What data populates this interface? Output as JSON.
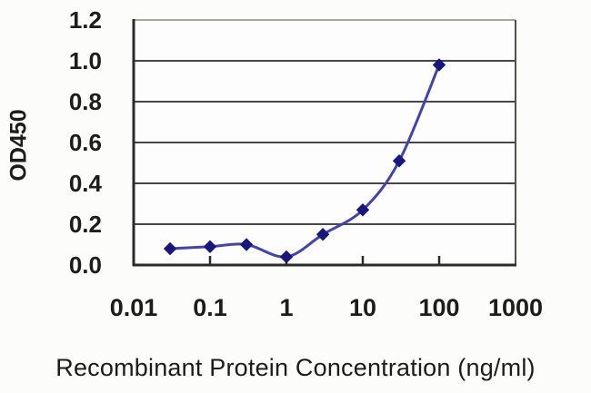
{
  "figure": {
    "background": "#fcfcfb",
    "plot_background": "#fdfdfd"
  },
  "chart_data": {
    "type": "line",
    "title": "",
    "xlabel": "Recombinant Protein Concentration (ng/ml)",
    "ylabel": "OD450",
    "x_scale": "log",
    "xlim": [
      0.01,
      1000
    ],
    "ylim": [
      0,
      1.2
    ],
    "x_ticks": [
      0.01,
      0.1,
      1,
      10,
      100,
      1000
    ],
    "x_tick_labels": [
      "0.01",
      "0.1",
      "1",
      "10",
      "100",
      "1000"
    ],
    "y_ticks": [
      0.0,
      0.2,
      0.4,
      0.6,
      0.8,
      1.0,
      1.2
    ],
    "y_tick_labels": [
      "0.0",
      "0.2",
      "0.4",
      "0.6",
      "0.8",
      "1.0",
      "1.2"
    ],
    "grid": "horizontal",
    "legend": "none",
    "series": [
      {
        "name": "OD450",
        "marker": "diamond",
        "smooth": true,
        "line_color": "#4444a8",
        "marker_color": "#17177d",
        "points": [
          {
            "x": 0.03,
            "y": 0.08
          },
          {
            "x": 0.1,
            "y": 0.09
          },
          {
            "x": 0.3,
            "y": 0.1
          },
          {
            "x": 1,
            "y": 0.04
          },
          {
            "x": 3,
            "y": 0.15
          },
          {
            "x": 10,
            "y": 0.27
          },
          {
            "x": 30,
            "y": 0.51
          },
          {
            "x": 100,
            "y": 0.98
          }
        ]
      }
    ],
    "colors": {
      "gridline": "#474747",
      "axis": "#2b2b2b",
      "frame_top": "#a6a6a6",
      "frame_right": "#4f4f4f",
      "text": "#1c1c1c"
    }
  }
}
